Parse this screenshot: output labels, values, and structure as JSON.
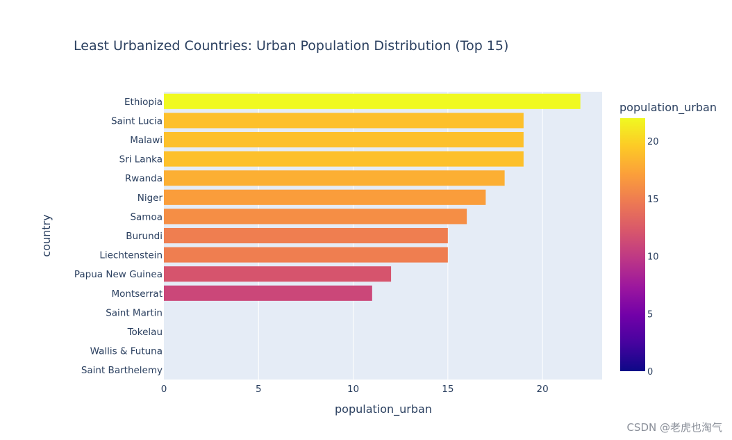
{
  "chart_data": {
    "type": "bar",
    "orientation": "horizontal",
    "title": "Least Urbanized Countries: Urban Population Distribution (Top 15)",
    "xlabel": "population_urban",
    "ylabel": "country",
    "categories": [
      "Ethiopia",
      "Saint Lucia",
      "Malawi",
      "Sri Lanka",
      "Rwanda",
      "Niger",
      "Samoa",
      "Burundi",
      "Liechtenstein",
      "Papua New Guinea",
      "Montserrat",
      "Saint Martin",
      "Tokelau",
      "Wallis & Futuna",
      "Saint Barthelemy"
    ],
    "values": [
      22,
      19,
      19,
      19,
      18,
      17,
      16,
      15,
      15,
      12,
      11,
      0,
      0,
      0,
      0
    ],
    "xlim": [
      0,
      23.15
    ],
    "xticks": [
      0,
      5,
      10,
      15,
      20
    ],
    "grid": true,
    "colorbar": {
      "title": "population_urban",
      "range": [
        0,
        22
      ],
      "ticks": [
        0,
        5,
        10,
        15,
        20
      ],
      "colorscale": [
        "#0d0887",
        "#46039f",
        "#7201a8",
        "#9c179e",
        "#bd3786",
        "#d8576b",
        "#ed7953",
        "#fb9f3a",
        "#fdca26",
        "#f0f921"
      ]
    },
    "plot_background": "#e5ecf6"
  },
  "watermark": "CSDN @老虎也淘气"
}
